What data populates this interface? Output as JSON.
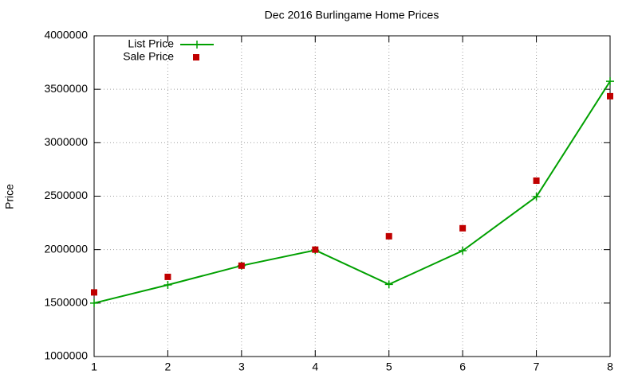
{
  "chart_data": {
    "type": "line",
    "title": "Dec 2016 Burlingame Home Prices",
    "y_label": "Price",
    "x": [
      1,
      2,
      3,
      4,
      5,
      6,
      7,
      8
    ],
    "series": [
      {
        "name": "List Price",
        "color": "#00a000",
        "style": "linespoints",
        "values": [
          1500000,
          1670000,
          1850000,
          1995000,
          1675000,
          1990000,
          2495000,
          3575000
        ]
      },
      {
        "name": "Sale Price",
        "color": "#c00000",
        "style": "points",
        "values": [
          1600000,
          1745000,
          1850000,
          2000000,
          2125000,
          2200000,
          2645000,
          3435000
        ]
      }
    ],
    "xlim": [
      1,
      8
    ],
    "xticks": [
      1,
      2,
      3,
      4,
      5,
      6,
      7,
      8
    ],
    "ylim": [
      1000000,
      4000000
    ],
    "yticks": [
      1000000,
      1500000,
      2000000,
      2500000,
      3000000,
      3500000,
      4000000
    ],
    "grid": true,
    "legend": "top-left"
  }
}
